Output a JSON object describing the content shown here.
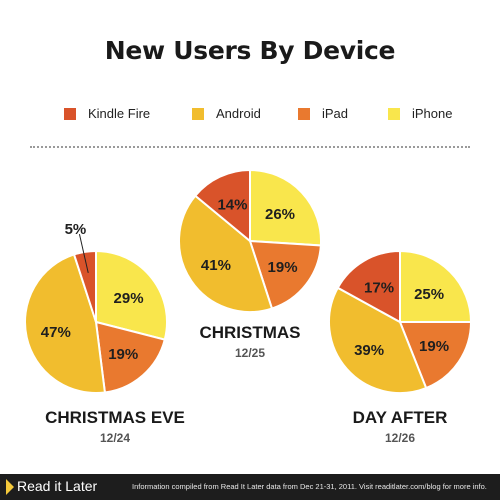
{
  "chart_data": {
    "type": "pie",
    "title": "New Users By Device",
    "legend": [
      {
        "name": "Kindle Fire",
        "color": "#d9532a"
      },
      {
        "name": "Android",
        "color": "#f1bd2e"
      },
      {
        "name": "iPad",
        "color": "#e9792f"
      },
      {
        "name": "iPhone",
        "color": "#f9e64c"
      }
    ],
    "charts": [
      {
        "label": "CHRISTMAS EVE",
        "date": "12/24",
        "slices": [
          {
            "name": "iPhone",
            "value": 29,
            "label": "29%"
          },
          {
            "name": "iPad",
            "value": 19,
            "label": "19%"
          },
          {
            "name": "Android",
            "value": 47,
            "label": "47%"
          },
          {
            "name": "Kindle Fire",
            "value": 5,
            "label": "5%"
          }
        ]
      },
      {
        "label": "CHRISTMAS",
        "date": "12/25",
        "slices": [
          {
            "name": "iPhone",
            "value": 26,
            "label": "26%"
          },
          {
            "name": "iPad",
            "value": 19,
            "label": "19%"
          },
          {
            "name": "Android",
            "value": 41,
            "label": "41%"
          },
          {
            "name": "Kindle Fire",
            "value": 14,
            "label": "14%"
          }
        ]
      },
      {
        "label": "DAY AFTER",
        "date": "12/26",
        "slices": [
          {
            "name": "iPhone",
            "value": 25,
            "label": "25%"
          },
          {
            "name": "iPad",
            "value": 19,
            "label": "19%"
          },
          {
            "name": "Android",
            "value": 39,
            "label": "39%"
          },
          {
            "name": "Kindle Fire",
            "value": 17,
            "label": "17%"
          }
        ]
      }
    ]
  },
  "footer": {
    "logo_text": "Read it Later",
    "info": "Information compiled from Read It Later data from Dec 21-31, 2011. Visit readitlater.com/blog for more info."
  }
}
